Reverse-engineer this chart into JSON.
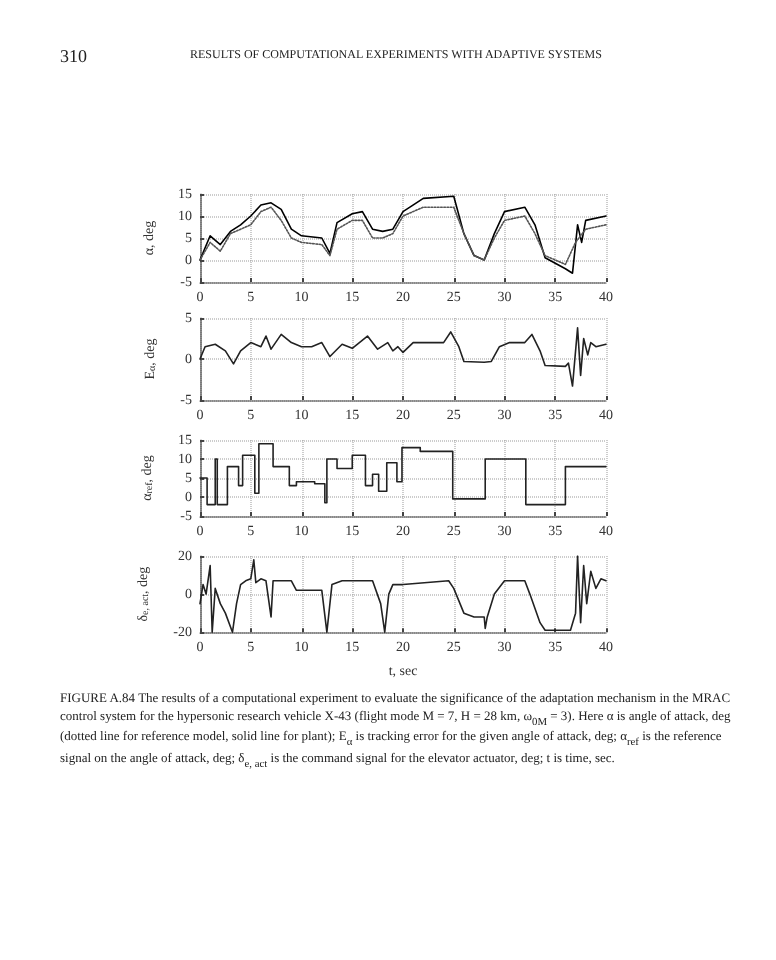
{
  "chart_data": [
    {
      "type": "line",
      "ylabel": "α, deg",
      "annotations": [
        "310",
        "RESULTS OF COMPUTATIONAL EXPERIMENTS WITH ADAPTIVE SYSTEMS"
      ],
      "xlim": [
        0,
        40
      ],
      "xticks": [
        0,
        5,
        10,
        15,
        20,
        25,
        30,
        35,
        40
      ],
      "ylim": [
        -5,
        15
      ],
      "yticks": [
        -5,
        0,
        5,
        10,
        15
      ],
      "grid": true,
      "marker": "none",
      "series": [
        {
          "color": "#000000",
          "line_style": "solid",
          "x": [
            0,
            1,
            2,
            3,
            4,
            5,
            6,
            7,
            8,
            9,
            10,
            12,
            12.8,
            13.5,
            15,
            16,
            17,
            18,
            19,
            20,
            22,
            25,
            26,
            27,
            28,
            29,
            30,
            32,
            33,
            34,
            36,
            36.7,
            37.2,
            37.6,
            38,
            40
          ],
          "values": [
            0,
            5.5,
            3.5,
            6.5,
            8,
            10,
            12.5,
            13,
            11.5,
            7,
            5.5,
            5,
            1.5,
            8.5,
            10.5,
            11,
            7,
            6.5,
            7,
            11,
            14,
            14.5,
            6,
            1,
            0,
            6,
            11,
            12,
            8,
            0.5,
            -2,
            -3,
            8,
            4,
            9,
            10
          ]
        },
        {
          "color": "#555555",
          "line_style": "dotted",
          "x": [
            0,
            1,
            2,
            3,
            4,
            5,
            6,
            7,
            8,
            9,
            10,
            12,
            12.8,
            13.5,
            15,
            16,
            17,
            18,
            19,
            20,
            22,
            25,
            26,
            27,
            28,
            29,
            30,
            32,
            33,
            34,
            36,
            37,
            38,
            40
          ],
          "values": [
            0,
            4,
            2,
            6,
            7,
            8,
            11,
            12,
            9,
            5,
            4,
            3.5,
            1,
            7,
            9,
            9,
            5,
            5,
            6,
            10,
            12,
            12,
            6,
            1,
            0,
            5,
            9,
            10,
            6,
            1,
            -1,
            4,
            7,
            8
          ]
        }
      ]
    },
    {
      "type": "line",
      "ylabel": "E$_{α}$, deg",
      "xlim": [
        0,
        40
      ],
      "xticks": [
        0,
        5,
        10,
        15,
        20,
        25,
        30,
        35,
        40
      ],
      "ylim": [
        -5,
        5
      ],
      "yticks": [
        -5,
        0,
        5
      ],
      "grid": true,
      "marker": "none",
      "series": [
        {
          "color": "#222222",
          "line_style": "solid",
          "x": [
            0,
            0.5,
            1.5,
            2.5,
            3.3,
            4,
            5,
            6,
            6.5,
            7,
            8,
            9,
            10,
            11,
            12,
            12.8,
            14,
            15,
            16.5,
            17.5,
            18.5,
            19,
            19.5,
            20,
            21,
            24,
            24.7,
            25.5,
            26,
            28,
            28.7,
            29.5,
            30.5,
            32,
            32.7,
            33.5,
            34,
            36,
            36.3,
            36.7,
            37.2,
            37.5,
            37.8,
            38.2,
            38.5,
            39,
            40
          ],
          "values": [
            0,
            1.5,
            1.8,
            1,
            -0.6,
            1,
            2,
            1.5,
            2.8,
            1.2,
            3,
            2,
            1.5,
            1.5,
            2,
            0.3,
            1.8,
            1.3,
            2.8,
            1.2,
            2,
            1,
            1.5,
            0.8,
            2,
            2,
            3.3,
            1.5,
            -0.3,
            -0.4,
            -0.3,
            1.5,
            2,
            2,
            3,
            1,
            -0.8,
            -0.9,
            -0.5,
            -3.3,
            3.8,
            -2,
            2.5,
            0.5,
            2,
            1.5,
            1.8
          ]
        }
      ]
    },
    {
      "type": "step",
      "ylabel": "α$_{ref}$, deg",
      "xlim": [
        0,
        40
      ],
      "xticks": [
        0,
        5,
        10,
        15,
        20,
        25,
        30,
        35,
        40
      ],
      "ylim": [
        -5,
        15
      ],
      "yticks": [
        -5,
        0,
        5,
        10,
        15
      ],
      "grid": true,
      "marker": "none",
      "series": [
        {
          "color": "#222222",
          "line_style": "solid",
          "x": [
            0,
            0.7,
            1.5,
            1.7,
            2.7,
            3.8,
            4.2,
            5.4,
            5.8,
            7.2,
            8.8,
            9.5,
            11.3,
            12.3,
            12.5,
            13.5,
            15,
            16.3,
            17,
            17.6,
            18.4,
            19.4,
            19.9,
            21.7,
            24.9,
            28.1,
            32.1,
            36,
            40
          ],
          "values": [
            5,
            -2,
            10,
            -2,
            8,
            3,
            11,
            1,
            14,
            8,
            3,
            4,
            3.5,
            -1.5,
            10,
            7.5,
            11,
            3,
            6,
            1.5,
            9,
            4,
            13,
            12,
            -0.5,
            10,
            -2,
            8,
            8
          ]
        }
      ]
    },
    {
      "type": "line",
      "ylabel": "δ$_{e, act}$, deg",
      "xlabel": "t, sec",
      "annotations": [
        "FIGURE A.84 The results of a computational experiment to evaluate the significance of the adaptation mechanism in the MRAC control system for the hypersonic research vehicle X-43 (flight mode M = 7, H = 28 km, ω$_{0M}$ = 3). Here α is angle of attack, deg (dotted line for reference model, solid line for plant); E$_{α}$ is tracking error for the given angle of attack, deg; α$_{ref}$ is the reference signal on the angle of attack, deg; δ$_{e, act}$ is the command signal for the elevator actuator, deg; t is time, sec."
      ],
      "xlim": [
        0,
        40
      ],
      "xticks": [
        0,
        5,
        10,
        15,
        20,
        25,
        30,
        35,
        40
      ],
      "ylim": [
        -20,
        20
      ],
      "yticks": [
        -20,
        0,
        20
      ],
      "grid": true,
      "marker": "none",
      "series": [
        {
          "color": "#222222",
          "line_style": "solid",
          "x": [
            0,
            0.3,
            0.6,
            1,
            1.2,
            1.5,
            2,
            2.5,
            3.2,
            3.6,
            4,
            4.5,
            5,
            5.3,
            5.5,
            6,
            6.5,
            7,
            7.2,
            8,
            9,
            9.5,
            12,
            12.5,
            13,
            14,
            17,
            17.8,
            18.2,
            18.6,
            19,
            20,
            24.5,
            25,
            26,
            27,
            28,
            28.1,
            28.3,
            29,
            30,
            32,
            32.5,
            33.5,
            34,
            36.5,
            37,
            37.2,
            37.5,
            37.8,
            38.1,
            38.5,
            39,
            39.5,
            40
          ],
          "values": [
            -5,
            5,
            0,
            15,
            -20,
            3,
            -5,
            -10,
            -20,
            -5,
            5,
            7,
            8,
            18,
            6,
            8,
            7,
            -12,
            7,
            7,
            7,
            2,
            2,
            -20,
            5,
            7,
            7,
            -5,
            -20,
            0,
            5,
            5,
            7,
            3,
            -10,
            -12,
            -12,
            -18,
            -12,
            0,
            7,
            7,
            0,
            -15,
            -19,
            -19,
            -10,
            20,
            -15,
            15,
            -5,
            12,
            3,
            8,
            7
          ]
        }
      ]
    }
  ]
}
